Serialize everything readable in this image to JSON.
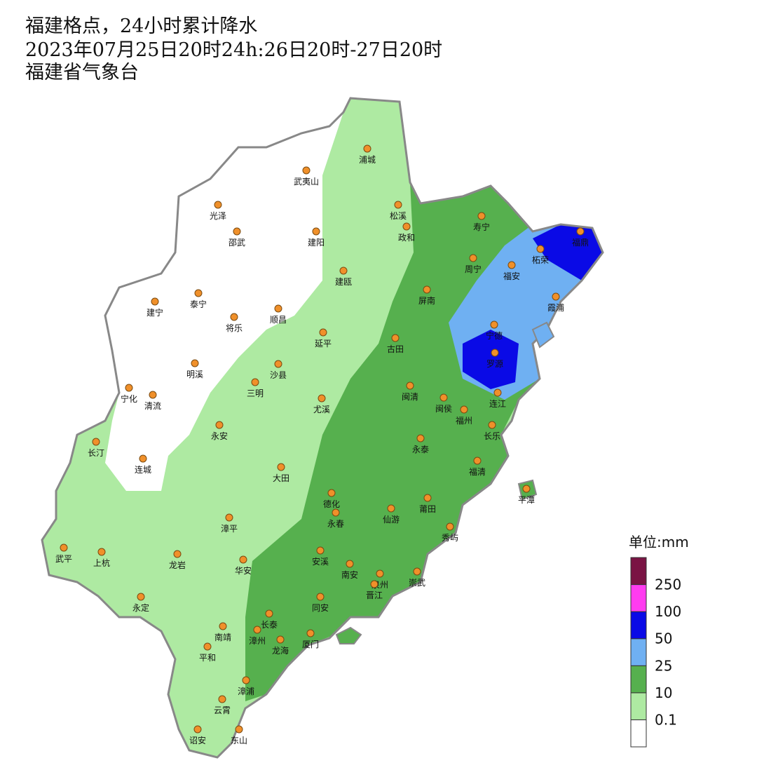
{
  "header": {
    "title": "福建格点，24小时累计降水",
    "subtitle": "2023年07月25日20时24h:26日20时-27日20时",
    "source": "福建省气象台"
  },
  "legend": {
    "unit": "单位:mm",
    "levels": [
      0.1,
      10,
      25,
      50,
      100,
      250
    ],
    "colors": [
      "#ffffff",
      "#aeeaa2",
      "#56b04e",
      "#6fb0f2",
      "#0a0ae6",
      "#ff3cf0",
      "#7a1444"
    ]
  },
  "map": {
    "cities": [
      "浦城",
      "武夷山",
      "光泽",
      "松溪",
      "寿宁",
      "邵武",
      "建阳",
      "政和",
      "福鼎",
      "柘荣",
      "周宁",
      "福安",
      "建瓯",
      "屏南",
      "霞浦",
      "泰宁",
      "建宁",
      "顺昌",
      "将乐",
      "宁德",
      "延平",
      "古田",
      "罗源",
      "明溪",
      "沙县",
      "三明",
      "闽清",
      "宁化",
      "清流",
      "尤溪",
      "连江",
      "闽侯",
      "福州",
      "永安",
      "长乐",
      "长汀",
      "永泰",
      "连城",
      "福清",
      "大田",
      "平潭",
      "德化",
      "莆田",
      "漳平",
      "仙游",
      "永春",
      "秀屿",
      "武平",
      "上杭",
      "龙岩",
      "华安",
      "安溪",
      "南安",
      "泉州",
      "崇武",
      "晋江",
      "永定",
      "同安",
      "长泰",
      "南靖",
      "漳州",
      "龙海",
      "厦门",
      "平和",
      "漳浦",
      "云霄",
      "诏安",
      "东山"
    ]
  }
}
